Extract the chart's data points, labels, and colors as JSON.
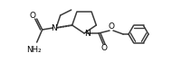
{
  "bg_color": "#ffffff",
  "line_color": "#3a3a3a",
  "line_width": 1.1,
  "font_size": 6.0,
  "figsize": [
    1.9,
    0.89
  ],
  "dpi": 100,
  "xlim": [
    0,
    190
  ],
  "ylim": [
    0,
    89
  ]
}
